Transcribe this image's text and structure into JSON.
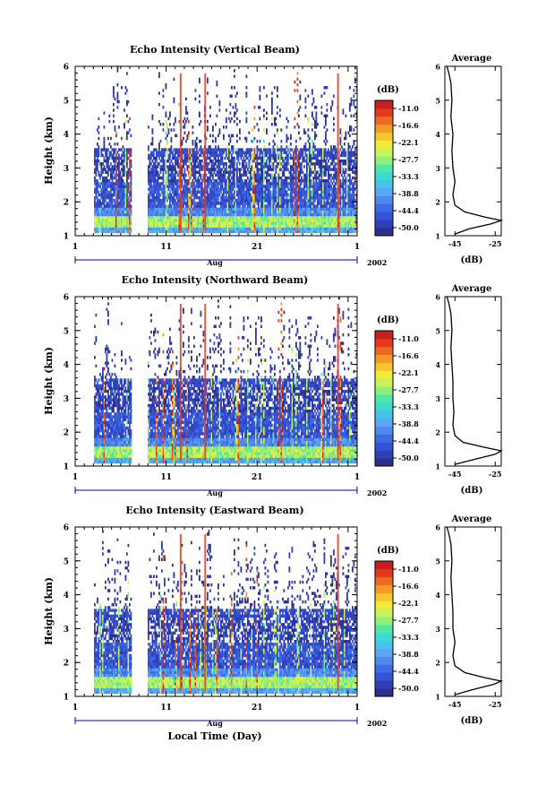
{
  "figure": {
    "xlabel": "Local Time (Day)",
    "month_label": "Aug",
    "year_label": "2002"
  },
  "chart_data": [
    {
      "type": "heatmap",
      "title": "Echo Intensity (Vertical Beam)",
      "ylabel": "Height (km)",
      "ylim": [
        1,
        6
      ],
      "yticks": [
        "1",
        "2",
        "3",
        "4",
        "5",
        "6"
      ],
      "xlim": [
        1,
        32
      ],
      "xticks": [
        "1",
        "11",
        "21",
        "1"
      ],
      "colorbar": {
        "unit": "(dB)",
        "labels": [
          "-11.0",
          "-16.6",
          "-22.1",
          "-27.7",
          "-33.3",
          "-38.8",
          "-44.4",
          "-50.0"
        ]
      },
      "profile": {
        "title": "Average",
        "xlabel": "(dB)",
        "xticks": [
          "-45",
          "-25"
        ],
        "xlim": [
          -50,
          -22
        ],
        "heights": [
          1.05,
          1.2,
          1.35,
          1.45,
          1.55,
          1.7,
          1.9,
          2.2,
          2.6,
          3.0,
          3.5,
          4.0,
          4.5,
          5.0,
          5.5,
          5.8,
          6.0
        ],
        "values": [
          -45,
          -38,
          -27,
          -22,
          -30,
          -40,
          -45,
          -46,
          -45,
          -46,
          -46.5,
          -46,
          -47,
          -46.5,
          -47,
          -48,
          -49
        ]
      }
    },
    {
      "type": "heatmap",
      "title": "Echo Intensity (Northward Beam)",
      "ylabel": "Height (km)",
      "ylim": [
        1,
        6
      ],
      "yticks": [
        "1",
        "2",
        "3",
        "4",
        "5",
        "6"
      ],
      "xlim": [
        1,
        32
      ],
      "xticks": [
        "1",
        "11",
        "21",
        "1"
      ],
      "colorbar": {
        "unit": "(dB)",
        "labels": [
          "-11.0",
          "-16.6",
          "-22.1",
          "-27.7",
          "-33.3",
          "-38.8",
          "-44.4",
          "-50.0"
        ]
      },
      "profile": {
        "title": "Average",
        "xlabel": "(dB)",
        "xticks": [
          "-45",
          "-25"
        ],
        "xlim": [
          -50,
          -22
        ],
        "heights": [
          1.05,
          1.2,
          1.35,
          1.45,
          1.55,
          1.7,
          1.9,
          2.2,
          2.6,
          3.0,
          3.5,
          4.0,
          4.5,
          5.0,
          5.5,
          5.8,
          6.0
        ],
        "values": [
          -45,
          -35,
          -25,
          -22,
          -30,
          -41,
          -45,
          -46,
          -45.5,
          -46,
          -46,
          -46.5,
          -47,
          -46.5,
          -47,
          -48,
          -49
        ]
      }
    },
    {
      "type": "heatmap",
      "title": "Echo Intensity (Eastward Beam)",
      "ylabel": "Height (km)",
      "ylim": [
        1,
        6
      ],
      "yticks": [
        "1",
        "2",
        "3",
        "4",
        "5",
        "6"
      ],
      "xlim": [
        1,
        32
      ],
      "xticks": [
        "1",
        "11",
        "21",
        "1"
      ],
      "colorbar": {
        "unit": "(dB)",
        "labels": [
          "-11.0",
          "-16.6",
          "-22.1",
          "-27.7",
          "-33.3",
          "-38.8",
          "-44.4",
          "-50.0"
        ]
      },
      "profile": {
        "title": "Average",
        "xlabel": "(dB)",
        "xticks": [
          "-45",
          "-25"
        ],
        "xlim": [
          -50,
          -22
        ],
        "heights": [
          1.05,
          1.2,
          1.35,
          1.45,
          1.55,
          1.7,
          1.9,
          2.2,
          2.6,
          3.0,
          3.5,
          4.0,
          4.5,
          5.0,
          5.5,
          5.8,
          6.0
        ],
        "values": [
          -45,
          -36,
          -26,
          -22,
          -30,
          -40,
          -45,
          -46,
          -45,
          -46,
          -46,
          -46.5,
          -47,
          -46.5,
          -47,
          -48,
          -49
        ]
      }
    }
  ],
  "colors": [
    "#2b2f8a",
    "#2e3fb8",
    "#3553d6",
    "#3f6be6",
    "#4f88ef",
    "#5aa6f2",
    "#46c3ea",
    "#3ed9d0",
    "#52e6a8",
    "#8ef07c",
    "#c7f35a",
    "#f0ec3c",
    "#f7c52e",
    "#f39a27",
    "#ec6a23",
    "#e23a1f",
    "#c81e1c"
  ]
}
